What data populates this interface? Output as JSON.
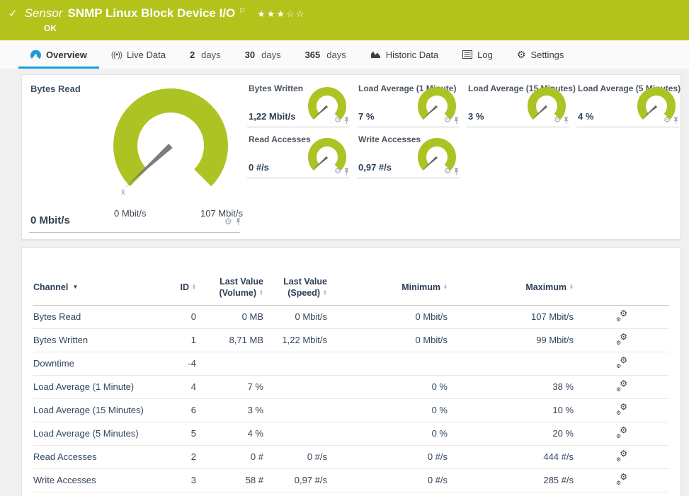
{
  "colors": {
    "accent_green": "#b3c31c",
    "gauge_green": "#adc323",
    "accent_blue": "#1e9cd8"
  },
  "header": {
    "check": "✓",
    "kind_label": "Sensor",
    "title": "SNMP Linux Block Device I/O",
    "flag": "⚐",
    "stars_filled": "★★★",
    "stars_empty": "☆☆",
    "status": "OK"
  },
  "tabs": [
    {
      "label": "Overview"
    },
    {
      "label": "Live Data"
    },
    {
      "num": "2",
      "label": "days"
    },
    {
      "num": "30",
      "label": "days"
    },
    {
      "num": "365",
      "label": "days"
    },
    {
      "label": "Historic Data"
    },
    {
      "label": "Log"
    },
    {
      "label": "Settings"
    }
  ],
  "big_gauge": {
    "title": "Bytes Read",
    "value": "0 Mbit/s",
    "min_label": "0 Mbit/s",
    "max_label": "107 Mbit/s",
    "avg_marker": "x̄"
  },
  "small_gauges": [
    {
      "title": "Bytes Written",
      "value": "1,22 Mbit/s"
    },
    {
      "title": "Load Average (1 Minute)",
      "value": "7 %"
    },
    {
      "title": "Load Average (15 Minutes)",
      "value": "3 %"
    },
    {
      "title": "Load Average (5 Minutes)",
      "value": "4 %"
    },
    {
      "title": "Read Accesses",
      "value": "0 #/s"
    },
    {
      "title": "Write Accesses",
      "value": "0,97 #/s"
    }
  ],
  "table": {
    "columns": [
      {
        "l1": "Channel"
      },
      {
        "l1": "ID"
      },
      {
        "l1": "Last Value",
        "l2": "(Volume)"
      },
      {
        "l1": "Last Value",
        "l2": "(Speed)"
      },
      {
        "l1": "Minimum"
      },
      {
        "l1": "Maximum"
      }
    ],
    "rows": [
      {
        "channel": "Bytes Read",
        "id": "0",
        "vol": "0 MB",
        "speed": "0 Mbit/s",
        "min": "0 Mbit/s",
        "max": "107 Mbit/s"
      },
      {
        "channel": "Bytes Written",
        "id": "1",
        "vol": "8,71 MB",
        "speed": "1,22 Mbit/s",
        "min": "0 Mbit/s",
        "max": "99 Mbit/s"
      },
      {
        "channel": "Downtime",
        "id": "-4",
        "vol": "",
        "speed": "",
        "min": "",
        "max": ""
      },
      {
        "channel": "Load Average (1 Minute)",
        "id": "4",
        "vol": "7 %",
        "speed": "",
        "min": "0 %",
        "max": "38 %"
      },
      {
        "channel": "Load Average (15 Minutes)",
        "id": "6",
        "vol": "3 %",
        "speed": "",
        "min": "0 %",
        "max": "10 %"
      },
      {
        "channel": "Load Average (5 Minutes)",
        "id": "5",
        "vol": "4 %",
        "speed": "",
        "min": "0 %",
        "max": "20 %"
      },
      {
        "channel": "Read Accesses",
        "id": "2",
        "vol": "0 #",
        "speed": "0 #/s",
        "min": "0 #/s",
        "max": "444 #/s"
      },
      {
        "channel": "Write Accesses",
        "id": "3",
        "vol": "58 #",
        "speed": "0,97 #/s",
        "min": "0 #/s",
        "max": "285 #/s"
      }
    ]
  }
}
